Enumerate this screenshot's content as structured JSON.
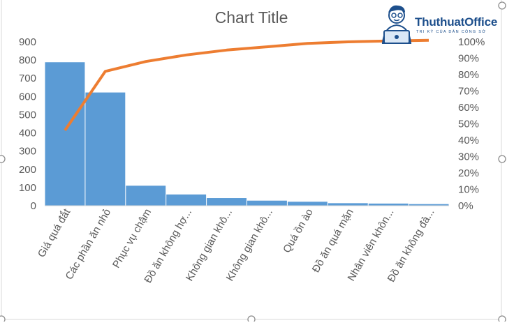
{
  "chart_data": {
    "type": "bar",
    "title": "Chart Title",
    "categories": [
      "Giá quá đắt",
      "Các phần ăn nhỏ",
      "Phục vụ chậm",
      "Đồ ăn không hợ...",
      "Không gian khô...",
      "Không gian khô...",
      "Quá ồn ào",
      "Đồ ăn quá mặn",
      "Nhân viên khôn...",
      "Đồ ăn không đả..."
    ],
    "series": [
      {
        "type": "bar",
        "color": "#5b9bd5",
        "values": [
          788,
          622,
          110,
          62,
          42,
          28,
          22,
          14,
          12,
          9
        ]
      },
      {
        "type": "line",
        "color": "#ed7d31",
        "axis": "secondary",
        "values": [
          0.46,
          0.82,
          0.88,
          0.92,
          0.95,
          0.97,
          0.99,
          1.0,
          1.005,
          1.01
        ]
      }
    ],
    "ylim": [
      0,
      900
    ],
    "yticks": [
      "0",
      "100",
      "200",
      "300",
      "400",
      "500",
      "600",
      "700",
      "800",
      "900"
    ],
    "y2lim": [
      0,
      1
    ],
    "y2ticks": [
      "0%",
      "10%",
      "20%",
      "30%",
      "40%",
      "50%",
      "60%",
      "70%",
      "80%",
      "90%",
      "100%"
    ],
    "grid": false,
    "legend": "none"
  },
  "watermark": {
    "brand": "ThuthuatOffice",
    "tagline": "TRI KỶ CỦA DÂN CÔNG SỞ",
    "icon": "cartoon-person-laptop-icon"
  }
}
